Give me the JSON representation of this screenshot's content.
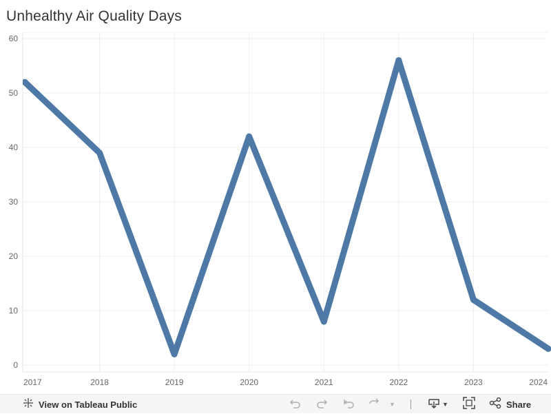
{
  "chart_data": {
    "type": "line",
    "title": "Unhealthy Air Quality Days",
    "x": [
      "2017",
      "2018",
      "2019",
      "2020",
      "2021",
      "2022",
      "2023",
      "2024"
    ],
    "series": [
      {
        "values": [
          52,
          39,
          2,
          42,
          8,
          56,
          12,
          3
        ]
      }
    ],
    "xlabel": "",
    "ylabel": "",
    "ylim": [
      0,
      60
    ],
    "yticks": [
      "0",
      "10",
      "20",
      "30",
      "40",
      "50",
      "60"
    ],
    "grid": true,
    "line_color": "#4e79a7"
  },
  "toolbar": {
    "view_label": "View on Tableau Public",
    "share_label": "Share"
  }
}
